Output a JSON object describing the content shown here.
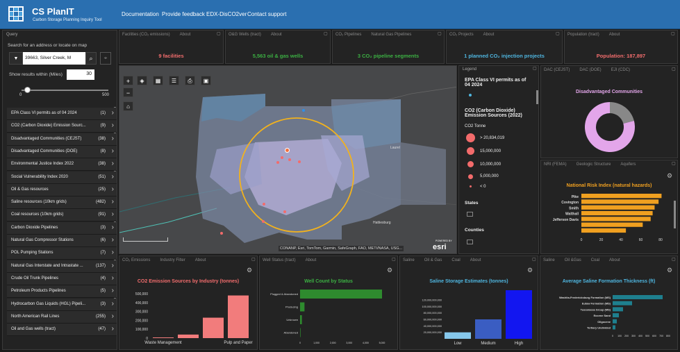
{
  "header": {
    "title": "CS PlanIT",
    "subtitle": "Carbon Storage Planning Inquiry Tool",
    "nav": [
      "Documentation",
      "Provide feedback",
      "EDX-DisCO2ver",
      "Contact support"
    ]
  },
  "query": {
    "title": "Query",
    "search_label": "Search for an address or locate on map",
    "search_value": "39663, Silver Creek, M",
    "within_label": "Show results within (Miles)",
    "within_value": "30",
    "slider_value": 30,
    "slider_min": "0",
    "slider_max": "500",
    "items": [
      {
        "label": "EPA Class VI permits as of 04 2024",
        "count": "(1)"
      },
      {
        "label": "CO2 (Carbon Dioxide) Emission Sourc...",
        "count": "(9)"
      },
      {
        "label": "Disadvantaged Communities (CEJST)",
        "count": "(38)"
      },
      {
        "label": "Disadvantaged Communities (DOE)",
        "count": "(8)"
      },
      {
        "label": "Environmental Justice Index 2022",
        "count": "(38)"
      },
      {
        "label": "Social Vulnerability Index 2020",
        "count": "(51)"
      },
      {
        "label": "Oil & Gas resources",
        "count": "(25)"
      },
      {
        "label": "Saline resources (10km grids)",
        "count": "(482)"
      },
      {
        "label": "Coal resources (10km grids)",
        "count": "(91)"
      },
      {
        "label": "Carbon Dioxide Pipelines",
        "count": "(3)"
      },
      {
        "label": "Natural Gas Compressor Stations",
        "count": "(6)"
      },
      {
        "label": "POL Pumping Stations",
        "count": "(7)"
      },
      {
        "label": "Natural Gas Interstate and Intrastate ...",
        "count": "(137)"
      },
      {
        "label": "Crude Oil Trunk Pipelines",
        "count": "(4)"
      },
      {
        "label": "Petroleum Products Pipelines",
        "count": "(5)"
      },
      {
        "label": "Hydrocarbon Gas Liquids (HGL) Pipeli...",
        "count": "(3)"
      },
      {
        "label": "North American Rail Lines",
        "count": "(255)"
      },
      {
        "label": "Oil and Gas wells (tract)",
        "count": "(47)"
      }
    ]
  },
  "kpis": [
    {
      "tabs": [
        "Facilities (CO₂ emissions)",
        "About"
      ],
      "value": "9  facilities",
      "color": "#f26d6d"
    },
    {
      "tabs": [
        "O&G Wells (tract)",
        "About"
      ],
      "value": "5,563  oil & gas wells",
      "color": "#3cb043"
    },
    {
      "tabs": [
        "CO₂ Pipelines",
        "Natural Gas Pipelines"
      ],
      "value": "3  CO₂ pipeline segments",
      "color": "#3cb043"
    },
    {
      "tabs": [
        "CO₂ Projects",
        "About"
      ],
      "value": "1  planned CO₂  injection projects",
      "color": "#4fb6e0"
    },
    {
      "tabs": [
        "Population (tract)",
        "About"
      ],
      "value": "Population:  187,897",
      "color": "#f26d6d"
    }
  ],
  "map": {
    "attribution": "CONANP, Esri, TomTom, Garmin, SafeGraph, FAO, METI/NASA, USG...",
    "powered": "POWERED BY",
    "brand": "esri",
    "place1": "Laurel",
    "place2": "Hattiesburg"
  },
  "legend": {
    "title": "Legend",
    "layer1": "EPA Class VI permits as of 04 2024",
    "layer2": "CO2 (Carbon Dioxide) Emission Sources (2022)",
    "unit": "CO2 Tonne",
    "sizes": [
      "> 20,834,019",
      "15,000,000",
      "10,000,000",
      "5,000,000",
      "< 0"
    ],
    "states": "States",
    "counties": "Counties"
  },
  "dac": {
    "tabs": [
      "DAC (CEJST)",
      "DAC (DOE)",
      "EJI (CDC)"
    ],
    "title": "Disadvantaged Communities",
    "share": 0.79,
    "colors": {
      "main": "#e3a6ea",
      "rest": "#888888"
    }
  },
  "nri": {
    "tabs": [
      "NRI (FEMA)",
      "Geologic Structure",
      "Aquifers"
    ],
    "chart_data": {
      "type": "bar",
      "orientation": "horizontal",
      "title": "National Risk Index (natural hazards)",
      "categories": [
        "Pike",
        "Covington",
        "Smith",
        "Walthall",
        "Jefferson Davis",
        "",
        ""
      ],
      "values": [
        81,
        78,
        74,
        72,
        70,
        62,
        45
      ],
      "xlim": [
        0,
        80
      ],
      "ticks": [
        "0",
        "20",
        "40",
        "60",
        "80"
      ]
    }
  },
  "co2": {
    "tabs": [
      "CO₂ Emissions",
      "Industry Filter",
      "About"
    ],
    "chart_data": {
      "type": "bar",
      "title": "CO2 Emission Sources by Industry (tonnes)",
      "categories": [
        "Waste Management",
        "",
        "",
        "Pulp and Paper"
      ],
      "values": [
        8000,
        40000,
        230000,
        480000
      ],
      "ylim": [
        0,
        500000
      ],
      "ticks": [
        "500,000",
        "400,000",
        "300,000",
        "200,000",
        "100,000",
        "0"
      ]
    }
  },
  "wells": {
    "tabs": [
      "Well Status (tract)",
      "About"
    ],
    "chart_data": {
      "type": "bar",
      "orientation": "horizontal",
      "title": "Well Count by Status",
      "categories": [
        "Plugged & Abandoned",
        "Producing",
        "Unknown",
        "Abandoned"
      ],
      "values": [
        5000,
        270,
        110,
        30
      ],
      "xlim": [
        0,
        5000
      ],
      "ticks": [
        "0",
        "1,000",
        "2,000",
        "3,000",
        "4,000",
        "5,000"
      ]
    }
  },
  "saline": {
    "tabs": [
      "Saline",
      "Oil & Gas",
      "Coal",
      "About"
    ],
    "chart_data": {
      "type": "bar",
      "title": "Saline Storage Estimates (tonnes)",
      "categories": [
        "Low",
        "Medium",
        "High"
      ],
      "values": [
        20000000000,
        60000000000,
        150000000000
      ],
      "colors": [
        "#86c8ec",
        "#3a5dc2",
        "#1216f0"
      ],
      "ylim": [
        0,
        150000000000
      ],
      "ticks": [
        "120,000,000,000",
        "100,000,000,000",
        "80,000,000,000",
        "60,000,000,000",
        "40,000,000,000",
        "20,000,000,000"
      ]
    }
  },
  "thick": {
    "tabs": [
      "Saline",
      "Oil &Gas",
      "Coal",
      "About"
    ],
    "chart_data": {
      "type": "bar",
      "orientation": "horizontal",
      "title": "Average Saline Formation Thickness (ft)",
      "categories": [
        "Washita-Fredericksburg Formation (MS)",
        "Eutaw Formation (MS)",
        "Tuscaloosa Group (MS)",
        "Eocene Sand",
        "Oligocene",
        "Tertiary Undivided"
      ],
      "values": [
        720,
        280,
        150,
        90,
        60,
        40
      ],
      "xlim": [
        0,
        800
      ],
      "ticks": [
        "0",
        "100",
        "200",
        "300",
        "400",
        "500",
        "600",
        "700",
        "800"
      ]
    }
  }
}
